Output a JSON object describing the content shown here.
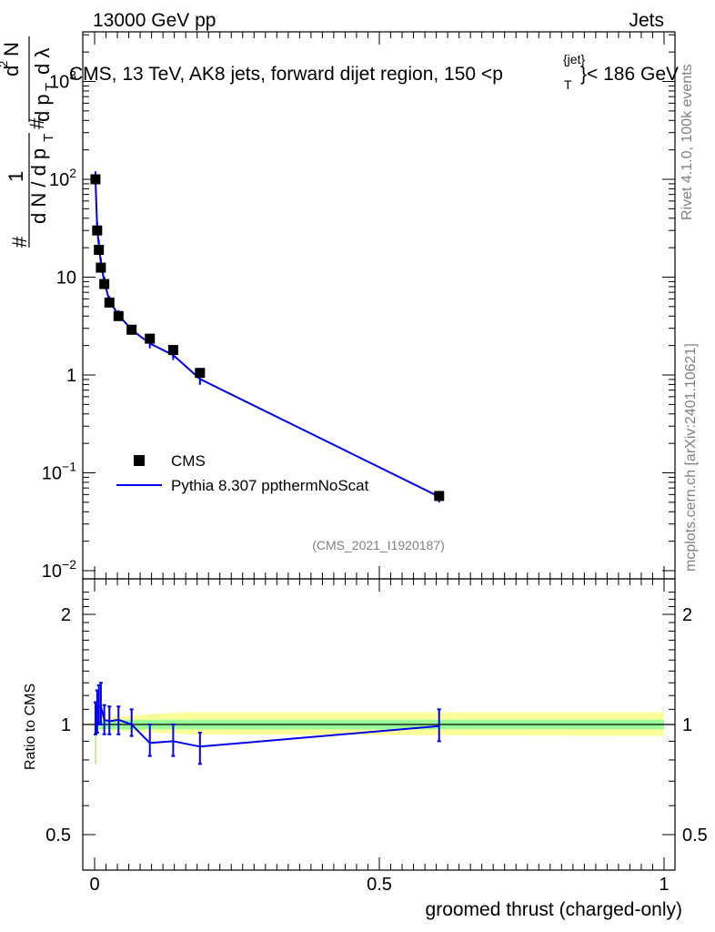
{
  "header": {
    "left": "13000 GeV pp",
    "right": "Jets"
  },
  "side_labels": {
    "rivet": "Rivet 4.1.0,  100k events",
    "mcplots": "mcplots.cern.ch [arXiv:2401.10621]"
  },
  "chart_data": [
    {
      "type": "scatter",
      "title": "CMS, 13 TeV, AK8 jets, forward dijet region, 150 <p",
      "title_sup": "{jet}",
      "title_sub": "T",
      "title_tail": "}< 186 GeV",
      "ylabel": "1/(dN/dp_T) d²N/(dp_T dλ)",
      "ylabel_parts": {
        "hash": "#",
        "one": "1",
        "dn": "d N / d p",
        "t": "T",
        "hash2": "#",
        "d2n": "d",
        "sq": "2",
        "n": "N",
        "dp": "d p",
        "t2": "T",
        "dl": "d λ"
      },
      "yscale": "log",
      "ylim": [
        0.01,
        3000
      ],
      "xlim": [
        -0.02,
        1.0
      ],
      "y_ticks": [
        {
          "value": 1000,
          "label": "10",
          "exp": "3"
        },
        {
          "value": 100,
          "label": "10",
          "exp": "2"
        },
        {
          "value": 10,
          "label": "10",
          "exp": ""
        },
        {
          "value": 1,
          "label": "1",
          "exp": ""
        },
        {
          "value": 0.1,
          "label": "10",
          "exp": "−1"
        },
        {
          "value": 0.01,
          "label": "10",
          "exp": "−2"
        }
      ],
      "analysis_label": "(CMS_2021_I1920187)",
      "legend_position": "middle-left",
      "series": [
        {
          "name": "CMS",
          "style": "markers",
          "color": "#000000",
          "x": [
            0.0015,
            0.0045,
            0.0075,
            0.011,
            0.017,
            0.026,
            0.042,
            0.065,
            0.097,
            0.138,
            0.185,
            0.605
          ],
          "y": [
            100,
            30,
            19,
            12.5,
            8.5,
            5.5,
            4.0,
            2.9,
            2.35,
            1.8,
            1.05,
            0.058
          ]
        },
        {
          "name": "Pythia 8.307 ppthermNoScat",
          "style": "line",
          "color": "#0000ee",
          "x": [
            0.0015,
            0.0045,
            0.0075,
            0.011,
            0.017,
            0.026,
            0.042,
            0.065,
            0.097,
            0.138,
            0.185,
            0.605
          ],
          "y": [
            105,
            32,
            21,
            14,
            9.0,
            5.7,
            4.1,
            2.9,
            2.1,
            1.6,
            0.91,
            0.057
          ],
          "yerr": [
            0.12,
            0.12,
            0.12,
            0.1,
            0.1,
            0.1,
            0.1,
            0.1,
            0.1,
            0.1,
            0.12,
            0.12
          ]
        }
      ]
    },
    {
      "type": "line",
      "ylabel": "Ratio to CMS",
      "xlabel": "groomed thrust (charged-only)",
      "yscale": "log",
      "ylim": [
        0.4,
        2.4
      ],
      "xlim": [
        -0.02,
        1.0
      ],
      "y_ticks": [
        {
          "value": 2,
          "label": "2"
        },
        {
          "value": 1,
          "label": "1"
        },
        {
          "value": 0.5,
          "label": "0.5"
        }
      ],
      "x_ticks": [
        {
          "value": 0,
          "label": "0"
        },
        {
          "value": 0.5,
          "label": "0.5"
        },
        {
          "value": 1,
          "label": "1"
        }
      ],
      "band_outer": {
        "color": "#ffff99",
        "lo": 0.93,
        "hi": 1.08
      },
      "band_inner": {
        "color": "#99ff99",
        "lo": 0.97,
        "hi": 1.03
      },
      "series": [
        {
          "name": "Pythia 8.307 ppthermNoScat / CMS",
          "color": "#0000ee",
          "x": [
            0.0015,
            0.0045,
            0.0075,
            0.011,
            0.017,
            0.026,
            0.042,
            0.065,
            0.097,
            0.138,
            0.185,
            0.605
          ],
          "y": [
            1.05,
            1.07,
            1.12,
            1.12,
            1.03,
            1.02,
            1.03,
            1.0,
            0.89,
            0.9,
            0.87,
            0.99
          ],
          "ylo": [
            0.94,
            0.95,
            1.0,
            1.0,
            0.94,
            0.94,
            0.94,
            0.93,
            0.82,
            0.82,
            0.78,
            0.9
          ],
          "yhi": [
            1.15,
            1.24,
            1.28,
            1.3,
            1.13,
            1.12,
            1.12,
            1.1,
            1.0,
            1.0,
            0.95,
            1.1
          ]
        }
      ]
    }
  ]
}
